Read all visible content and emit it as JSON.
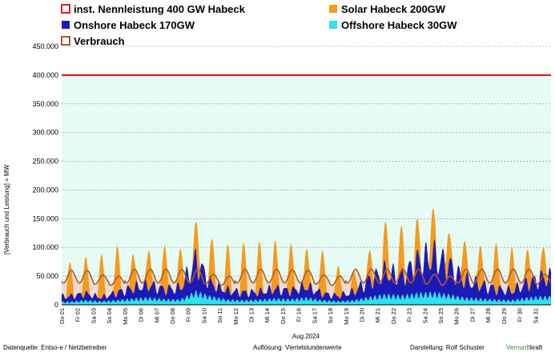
{
  "chart_data": {
    "type": "area",
    "ylabel": "[Verbrauch und Leistung] =  MW",
    "xlabel": "Aug.2024",
    "ylim": [
      0,
      450000
    ],
    "y_ticks": [
      "0",
      "50.000",
      "100.000",
      "150.000",
      "200.000",
      "250.000",
      "300.000",
      "350.000",
      "400.000",
      "450.000"
    ],
    "y_tick_values": [
      0,
      50000,
      100000,
      150000,
      200000,
      250000,
      300000,
      350000,
      400000,
      450000
    ],
    "grid": true,
    "legend_position": "top",
    "legend": [
      {
        "label": "inst. Nennleistung 400 GW Habeck",
        "color": "#e02020",
        "marker": "hollow-square"
      },
      {
        "label": "Solar Habeck 200GW",
        "color": "#f59a1b",
        "marker": "square"
      },
      {
        "label": "Onshore Habeck 170GW",
        "color": "#1a1ab8",
        "marker": "square"
      },
      {
        "label": "Offshore Habeck 30GW",
        "color": "#2fe0ee",
        "marker": "square"
      },
      {
        "label": "Verbrauch",
        "color": "#b5582a",
        "marker": "hollow-square"
      }
    ],
    "categories": [
      "Do 01",
      "Fr 02",
      "Sa 03",
      "So 04",
      "Mo 05",
      "Di 06",
      "Mi 07",
      "Do 08",
      "Fr 09",
      "Sa 10",
      "So 11",
      "Mo 12",
      "Di 13",
      "Mi 14",
      "Do 15",
      "Fr 16",
      "Sa 17",
      "So 18",
      "Mo 19",
      "Di 20",
      "Mi 21",
      "Do 22",
      "Fr 23",
      "Sa 24",
      "So 25",
      "Mo 26",
      "Di 27",
      "Mi 28",
      "Do 29",
      "Fr 30",
      "Sa 31"
    ],
    "capacity_line": 400000,
    "series": [
      {
        "name": "Solar Habeck 200GW",
        "daily_peak_total": [
          74000,
          84000,
          88000,
          103000,
          88000,
          95000,
          103000,
          98000,
          145000,
          115000,
          105000,
          108000,
          110000,
          112000,
          107000,
          98000,
          95000,
          68000,
          57000,
          95000,
          145000,
          138000,
          150000,
          168000,
          125000,
          112000,
          103000,
          108000,
          100000,
          97000,
          100000
        ]
      },
      {
        "name": "Onshore Habeck 170GW",
        "daily_peak": [
          14000,
          18000,
          10000,
          20000,
          28000,
          34000,
          26000,
          30000,
          80000,
          34000,
          24000,
          20000,
          20000,
          26000,
          22000,
          30000,
          18000,
          14000,
          22000,
          44000,
          60000,
          48000,
          80000,
          94000,
          76000,
          46000,
          36000,
          28000,
          24000,
          38000,
          50000
        ]
      },
      {
        "name": "Offshore Habeck 30GW",
        "daily_peak": [
          6000,
          9000,
          7000,
          9000,
          12000,
          14000,
          11000,
          10000,
          26000,
          16000,
          10000,
          9000,
          10000,
          12000,
          11000,
          14000,
          9000,
          7000,
          9000,
          15000,
          20000,
          18000,
          22000,
          24000,
          20000,
          14000,
          12000,
          10000,
          9000,
          14000,
          16000
        ]
      },
      {
        "name": "Verbrauch",
        "daily_max": [
          60000,
          60000,
          52000,
          50000,
          62000,
          62000,
          62000,
          61000,
          62000,
          53000,
          50000,
          62000,
          62000,
          62000,
          61000,
          60000,
          52000,
          50000,
          62000,
          62000,
          62000,
          62000,
          62000,
          53000,
          50000,
          62000,
          62000,
          62000,
          62000,
          62000,
          53000
        ],
        "daily_min": [
          38000,
          38000,
          36000,
          34000,
          38000,
          38000,
          38000,
          38000,
          38000,
          36000,
          34000,
          38000,
          38000,
          38000,
          38000,
          38000,
          36000,
          34000,
          38000,
          38000,
          38000,
          38000,
          38000,
          36000,
          34000,
          38000,
          38000,
          38000,
          38000,
          38000,
          36000
        ]
      }
    ]
  },
  "footer": {
    "source": "Datenquelle: Entso-e  / Netzbetreiber",
    "resolution": "Auflösung: Viertelstundenwerte",
    "author": "Darstellung:  Rolf Schuster",
    "brand_a": "Vernunft",
    "brand_b": "kraft",
    "brand_color": "#2e8b2e"
  }
}
